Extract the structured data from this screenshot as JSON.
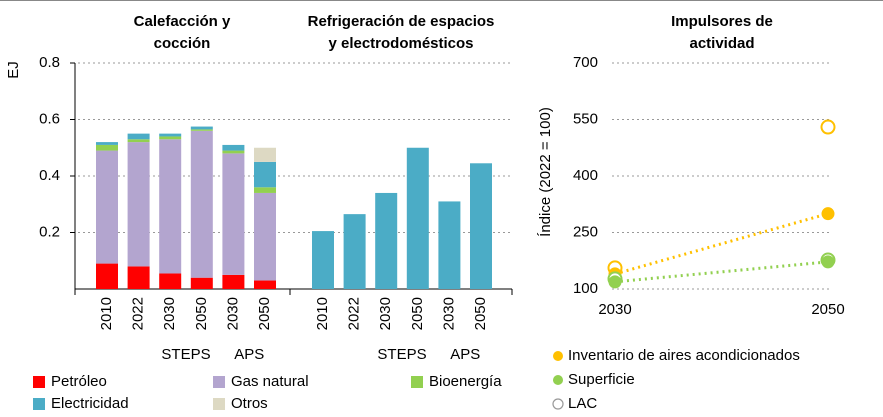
{
  "chart_data": [
    {
      "type": "stacked_bar",
      "title": [
        "Calefacción y",
        "cocción"
      ],
      "ylabel": "EJ",
      "categories": [
        "2010",
        "2022",
        "2030",
        "2050",
        "2030",
        "2050"
      ],
      "groups": [
        {
          "label": "STEPS",
          "categories": [
            2,
            3
          ]
        },
        {
          "label": "APS",
          "categories": [
            4,
            5
          ]
        }
      ],
      "ylim": [
        0,
        0.8
      ],
      "yticks": [
        0.2,
        0.4,
        0.6,
        0.8
      ],
      "grid": true,
      "series": [
        {
          "name": "Petróleo",
          "color": "#ff0000",
          "values": [
            0.09,
            0.08,
            0.055,
            0.04,
            0.05,
            0.03
          ]
        },
        {
          "name": "Gas natural",
          "color": "#b3a5cf",
          "values": [
            0.4,
            0.44,
            0.475,
            0.52,
            0.43,
            0.31
          ]
        },
        {
          "name": "Bioenergía",
          "color": "#92d050",
          "values": [
            0.02,
            0.01,
            0.01,
            0.005,
            0.01,
            0.02
          ]
        },
        {
          "name": "Electricidad",
          "color": "#4bacc6",
          "values": [
            0.01,
            0.02,
            0.01,
            0.01,
            0.02,
            0.09
          ]
        },
        {
          "name": "Otros",
          "color": "#ddd9c3",
          "values": [
            0,
            0,
            0,
            0,
            0,
            0.05
          ]
        }
      ]
    },
    {
      "type": "bar",
      "title": [
        "Refrigeración de espacios",
        "y electrodomésticos"
      ],
      "categories": [
        "2010",
        "2022",
        "2030",
        "2050",
        "2030",
        "2050"
      ],
      "groups": [
        {
          "label": "STEPS",
          "categories": [
            2,
            3
          ]
        },
        {
          "label": "APS",
          "categories": [
            4,
            5
          ]
        }
      ],
      "ylim": [
        0,
        0.8
      ],
      "color": "#4bacc6",
      "values": [
        0.205,
        0.265,
        0.34,
        0.5,
        0.31,
        0.445
      ]
    },
    {
      "type": "dot_line",
      "title": [
        "Impulsores de",
        "actividad"
      ],
      "ylabel": "Índice (2022 = 100)",
      "categories": [
        "2030",
        "2050"
      ],
      "ylim": [
        100,
        700
      ],
      "yticks": [
        100,
        250,
        400,
        550,
        700
      ],
      "grid": true,
      "series": [
        {
          "name": "Inventario de aires acondicionados",
          "color": "#ffc000",
          "values": [
            140,
            300
          ],
          "open_values": [
            156,
            530
          ]
        },
        {
          "name": "Superficie",
          "color": "#92d050",
          "values": [
            119,
            172
          ],
          "open_values": [
            127,
            177
          ]
        }
      ],
      "open_marker_label": "LAC"
    }
  ]
}
